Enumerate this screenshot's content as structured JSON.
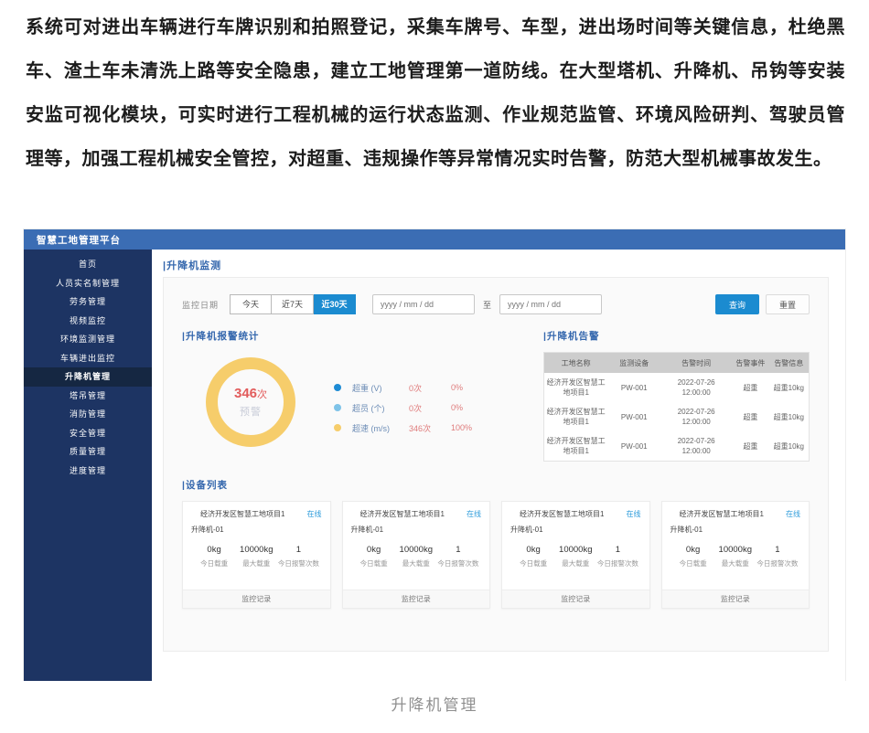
{
  "document": {
    "paragraph": "系统可对进出车辆进行车牌识别和拍照登记，采集车牌号、车型，进出场时间等关键信息，杜绝黑车、渣土车未清洗上路等安全隐患，建立工地管理第一道防线。在大型塔机、升降机、吊钩等安装安监可视化模块，可实时进行工程机械的运行状态监测、作业规范监管、环境风险研判、驾驶员管理等，加强工程机械安全管控，对超重、违规操作等异常情况实时告警，防范大型机械事故发生。",
    "caption": "升降机管理"
  },
  "app": {
    "title": "智慧工地管理平台",
    "colors": {
      "topbar": "#3b6db4",
      "sidebar": "#1d3463",
      "sidebar_active": "#152742",
      "primary_blue": "#1b8bd0",
      "section_title": "#3467ad",
      "donut_ring": "#f6cd6b",
      "alert_red": "#e25c5c",
      "online_blue": "#2e9cdb"
    },
    "sidebar": {
      "items": [
        {
          "label": "首页"
        },
        {
          "label": "人员实名制管理"
        },
        {
          "label": "劳务管理"
        },
        {
          "label": "视频监控"
        },
        {
          "label": "环境监测管理"
        },
        {
          "label": "车辆进出监控"
        },
        {
          "label": "升降机管理",
          "active": true
        },
        {
          "label": "塔吊管理"
        },
        {
          "label": "消防管理"
        },
        {
          "label": "安全管理"
        },
        {
          "label": "质量管理"
        },
        {
          "label": "进度管理"
        }
      ]
    },
    "page_title": "|升降机监测",
    "filter": {
      "label": "监控日期",
      "range_options": [
        "今天",
        "近7天",
        "近30天"
      ],
      "selected_range": "近30天",
      "date_start_placeholder": "yyyy / mm / dd",
      "date_end_placeholder": "yyyy / mm / dd",
      "to_label": "至",
      "query_label": "查询",
      "reset_label": "重置"
    },
    "stats": {
      "title": "|升降机报警统计",
      "donut_value": "346",
      "donut_unit": "次",
      "donut_label": "预警",
      "legend": [
        {
          "name": "超重 (V)",
          "count": "0次",
          "percent": "0%",
          "color": "#1d8bd4"
        },
        {
          "name": "超员 (个)",
          "count": "0次",
          "percent": "0%",
          "color": "#7ec3e8"
        },
        {
          "name": "超速 (m/s)",
          "count": "346次",
          "percent": "100%",
          "color": "#f6cd6b"
        }
      ]
    },
    "alerts": {
      "title": "|升降机告警",
      "columns": [
        "工地名称",
        "监测设备",
        "告警时间",
        "告警事件",
        "告警信息"
      ],
      "rows": [
        [
          "经济开发区智慧工地项目1",
          "PW-001",
          "2022-07-26 12:00:00",
          "超重",
          "超重10kg"
        ],
        [
          "经济开发区智慧工地项目1",
          "PW-001",
          "2022-07-26 12:00:00",
          "超重",
          "超重10kg"
        ],
        [
          "经济开发区智慧工地项目1",
          "PW-001",
          "2022-07-26 12:00:00",
          "超重",
          "超重10kg"
        ]
      ]
    },
    "devices": {
      "title": "|设备列表",
      "cards": [
        {
          "project": "经济开发区智慧工地项目1",
          "status": "在线",
          "device": "升降机-01",
          "stats": [
            {
              "value": "0kg",
              "label": "今日载重"
            },
            {
              "value": "10000kg",
              "label": "最大载重"
            },
            {
              "value": "1",
              "label": "今日报警次数"
            }
          ],
          "footer": "监控记录"
        },
        {
          "project": "经济开发区智慧工地项目1",
          "status": "在线",
          "device": "升降机-01",
          "stats": [
            {
              "value": "0kg",
              "label": "今日载重"
            },
            {
              "value": "10000kg",
              "label": "最大载重"
            },
            {
              "value": "1",
              "label": "今日报警次数"
            }
          ],
          "footer": "监控记录"
        },
        {
          "project": "经济开发区智慧工地项目1",
          "status": "在线",
          "device": "升降机-01",
          "stats": [
            {
              "value": "0kg",
              "label": "今日载重"
            },
            {
              "value": "10000kg",
              "label": "最大载重"
            },
            {
              "value": "1",
              "label": "今日报警次数"
            }
          ],
          "footer": "监控记录"
        },
        {
          "project": "经济开发区智慧工地项目1",
          "status": "在线",
          "device": "升降机-01",
          "stats": [
            {
              "value": "0kg",
              "label": "今日载重"
            },
            {
              "value": "10000kg",
              "label": "最大载重"
            },
            {
              "value": "1",
              "label": "今日报警次数"
            }
          ],
          "footer": "监控记录"
        }
      ]
    }
  },
  "chart_data": {
    "type": "pie",
    "title": "升降机报警统计",
    "categories": [
      "超重 (V)",
      "超员 (个)",
      "超速 (m/s)"
    ],
    "values": [
      0,
      0,
      346
    ],
    "percents": [
      "0%",
      "0%",
      "100%"
    ],
    "center_text": "346次 预警",
    "legend_position": "right"
  }
}
